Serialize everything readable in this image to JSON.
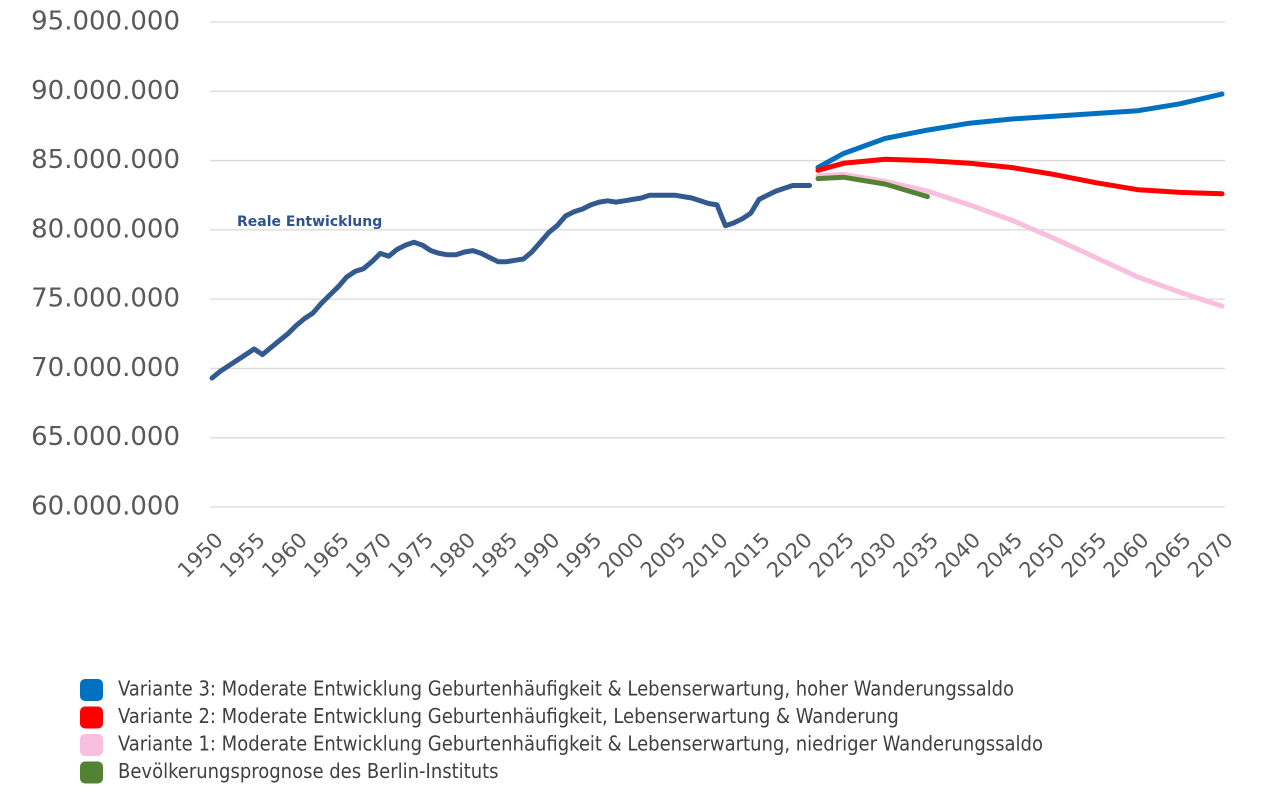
{
  "chart_data": {
    "type": "line",
    "annotation": "Reale Entwicklung",
    "xlim": [
      1950,
      2070
    ],
    "xticks": [
      1950,
      1955,
      1960,
      1965,
      1970,
      1975,
      1980,
      1985,
      1990,
      1995,
      2000,
      2005,
      2010,
      2015,
      2020,
      2025,
      2030,
      2035,
      2040,
      2045,
      2050,
      2055,
      2060,
      2065,
      2070
    ],
    "ylim": [
      60000000,
      95000000
    ],
    "yticks": [
      {
        "value": 60000000,
        "label": "60.000.000"
      },
      {
        "value": 65000000,
        "label": "65.000.000"
      },
      {
        "value": 70000000,
        "label": "70.000.000"
      },
      {
        "value": 75000000,
        "label": "75.000.000"
      },
      {
        "value": 80000000,
        "label": "80.000.000"
      },
      {
        "value": 85000000,
        "label": "85.000.000"
      },
      {
        "value": 90000000,
        "label": "90.000.000"
      },
      {
        "value": 95000000,
        "label": "95.000.000"
      }
    ],
    "grid": true,
    "legend": "bottom",
    "series": [
      {
        "color": "#335a8f",
        "x": [
          1950,
          1951,
          1952,
          1953,
          1954,
          1955,
          1956,
          1957,
          1958,
          1959,
          1960,
          1961,
          1962,
          1963,
          1964,
          1965,
          1966,
          1967,
          1968,
          1969,
          1970,
          1971,
          1972,
          1973,
          1974,
          1975,
          1976,
          1977,
          1978,
          1979,
          1980,
          1981,
          1982,
          1983,
          1984,
          1985,
          1986,
          1987,
          1988,
          1989,
          1990,
          1991,
          1992,
          1993,
          1994,
          1995,
          1996,
          1997,
          1998,
          1999,
          2000,
          2001,
          2002,
          2003,
          2004,
          2005,
          2006,
          2007,
          2008,
          2009,
          2010,
          2011,
          2012,
          2013,
          2014,
          2015,
          2016,
          2017,
          2018,
          2019,
          2020,
          2021
        ],
        "values": [
          69300000,
          69800000,
          70200000,
          70600000,
          71000000,
          71400000,
          71000000,
          71500000,
          72000000,
          72500000,
          73100000,
          73600000,
          74000000,
          74700000,
          75300000,
          75900000,
          76600000,
          77000000,
          77200000,
          77700000,
          78300000,
          78100000,
          78600000,
          78900000,
          79100000,
          78900000,
          78500000,
          78300000,
          78200000,
          78200000,
          78400000,
          78500000,
          78300000,
          78000000,
          77700000,
          77700000,
          77800000,
          77900000,
          78400000,
          79100000,
          79800000,
          80300000,
          81000000,
          81300000,
          81500000,
          81800000,
          82000000,
          82100000,
          82000000,
          82100000,
          82200000,
          82300000,
          82500000,
          82500000,
          82500000,
          82500000,
          82400000,
          82300000,
          82100000,
          81900000,
          81800000,
          80300000,
          80500000,
          80800000,
          81200000,
          82200000,
          82500000,
          82800000,
          83000000,
          83200000,
          83200000,
          83200000
        ]
      },
      {
        "name": "Variante 3: Moderate Entwicklung Geburtenhäufigkeit & Lebenserwartung, hoher Wanderungssaldo",
        "color": "#0070c0",
        "x": [
          2022,
          2025,
          2030,
          2035,
          2040,
          2045,
          2050,
          2055,
          2060,
          2065,
          2070
        ],
        "values": [
          84500000,
          85500000,
          86600000,
          87200000,
          87700000,
          88000000,
          88200000,
          88400000,
          88600000,
          89100000,
          89800000
        ]
      },
      {
        "name": "Variante 2: Moderate Entwicklung Geburtenhäufigkeit, Lebenserwartung & Wanderung",
        "color": "#ff0000",
        "x": [
          2022,
          2025,
          2030,
          2035,
          2040,
          2045,
          2050,
          2055,
          2060,
          2065,
          2070
        ],
        "values": [
          84300000,
          84800000,
          85100000,
          85000000,
          84800000,
          84500000,
          84000000,
          83400000,
          82900000,
          82700000,
          82600000
        ]
      },
      {
        "name": "Variante 1: Moderate Entwicklung Geburtenhäufigkeit & Lebenserwartung, niedriger Wanderungssaldo",
        "color": "#f9bfdf",
        "x": [
          2022,
          2025,
          2030,
          2035,
          2040,
          2045,
          2050,
          2055,
          2060,
          2065,
          2070
        ],
        "values": [
          83900000,
          84000000,
          83500000,
          82800000,
          81800000,
          80700000,
          79400000,
          78000000,
          76600000,
          75500000,
          74500000
        ]
      },
      {
        "name": "Bevölkerungsprognose des Berlin-Instituts",
        "color": "#548235",
        "x": [
          2022,
          2025,
          2030,
          2035
        ],
        "values": [
          83700000,
          83800000,
          83300000,
          82400000
        ]
      }
    ]
  }
}
